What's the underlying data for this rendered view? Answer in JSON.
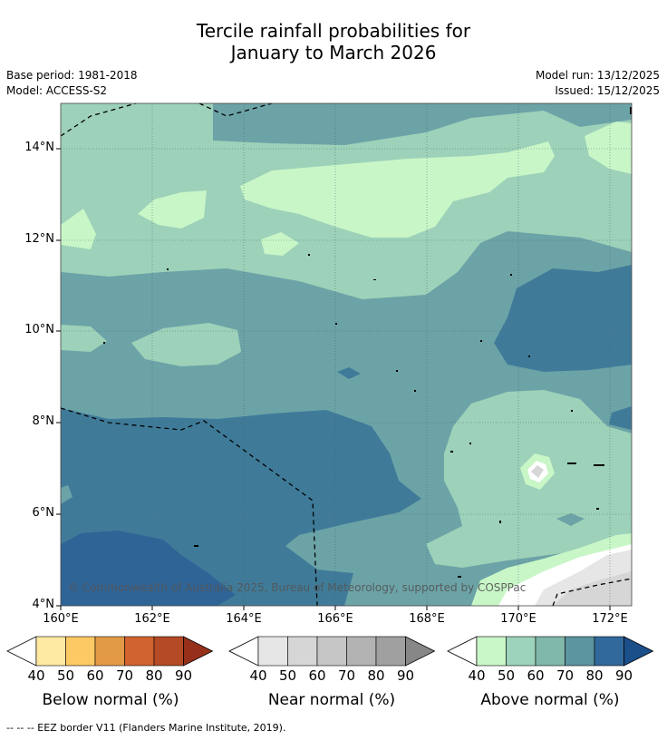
{
  "title_line1": "Tercile rainfall probabilities for",
  "title_line2": "January to March 2026",
  "meta": {
    "base_period": "Base period: 1981-2018",
    "model": "Model: ACCESS-S2",
    "model_run": "Model run: 13/12/2025",
    "issued": "Issued: 15/12/2025"
  },
  "map": {
    "lat_labels": [
      "14°N",
      "12°N",
      "10°N",
      "8°N",
      "6°N",
      "4°N"
    ],
    "lon_labels": [
      "160°E",
      "162°E",
      "164°E",
      "166°E",
      "168°E",
      "170°E",
      "172°E"
    ],
    "copyright": "© Commonwealth of Australia 2025, Bureau of Meteorology, supported by COSPPac"
  },
  "colorbars": [
    {
      "label": "Below normal (%)",
      "ticks": [
        "40",
        "50",
        "60",
        "70",
        "80",
        "90"
      ],
      "colors": [
        "#ffffff",
        "#fde9a1",
        "#fdc964",
        "#e39a46",
        "#d0632f",
        "#b44a26",
        "#96301a"
      ]
    },
    {
      "label": "Near normal (%)",
      "ticks": [
        "40",
        "50",
        "60",
        "70",
        "80",
        "90"
      ],
      "colors": [
        "#ffffff",
        "#e6e6e6",
        "#d6d6d6",
        "#c6c6c6",
        "#b3b3b3",
        "#a0a0a0",
        "#878787"
      ]
    },
    {
      "label": "Above normal (%)",
      "ticks": [
        "40",
        "50",
        "60",
        "70",
        "80",
        "90"
      ],
      "colors": [
        "#ffffff",
        "#c9f7c8",
        "#9dd3bb",
        "#80b8aa",
        "#5c94a0",
        "#32699c",
        "#1a4f8a"
      ]
    }
  ],
  "footnote": "-- -- -- EEZ border V11 (Flanders Marine Institute, 2019)."
}
